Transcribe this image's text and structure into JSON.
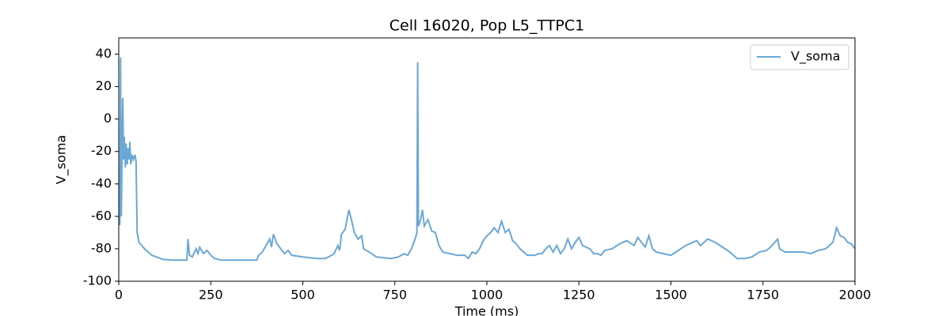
{
  "chart_data": {
    "type": "line",
    "title": "Cell 16020, Pop L5_TTPC1",
    "xlabel": "Time (ms)",
    "ylabel": "V_soma",
    "x": [
      0,
      3,
      5,
      7,
      9,
      11,
      13,
      15,
      18,
      20,
      23,
      25,
      28,
      30,
      33,
      36,
      40,
      44,
      47,
      50,
      55,
      70,
      90,
      120,
      150,
      185,
      188,
      192,
      200,
      210,
      215,
      220,
      230,
      240,
      250,
      260,
      280,
      320,
      375,
      380,
      390,
      400,
      410,
      415,
      420,
      430,
      440,
      450,
      460,
      470,
      500,
      540,
      560,
      570,
      585,
      595,
      600,
      605,
      615,
      625,
      632,
      640,
      650,
      660,
      665,
      680,
      700,
      740,
      760,
      775,
      785,
      795,
      805,
      810,
      812,
      814,
      820,
      825,
      830,
      840,
      850,
      860,
      870,
      880,
      900,
      920,
      940,
      950,
      960,
      970,
      980,
      990,
      1000,
      1010,
      1020,
      1030,
      1040,
      1050,
      1060,
      1070,
      1080,
      1090,
      1100,
      1110,
      1120,
      1130,
      1140,
      1150,
      1160,
      1170,
      1180,
      1190,
      1200,
      1210,
      1220,
      1230,
      1240,
      1250,
      1260,
      1270,
      1280,
      1290,
      1300,
      1310,
      1320,
      1340,
      1360,
      1380,
      1400,
      1410,
      1420,
      1430,
      1440,
      1450,
      1460,
      1480,
      1500,
      1520,
      1540,
      1560,
      1570,
      1580,
      1600,
      1620,
      1640,
      1660,
      1680,
      1700,
      1720,
      1740,
      1760,
      1770,
      1790,
      1795,
      1810,
      1840,
      1860,
      1880,
      1900,
      1920,
      1940,
      1950,
      1960,
      1970,
      1980,
      1990,
      2000
    ],
    "series": [
      {
        "name": "V_soma",
        "color": "#6aa8d6",
        "values": [
          -65,
          -65,
          38,
          -60,
          -20,
          13,
          -25,
          -11,
          -30,
          -15,
          -28,
          -18,
          -25,
          -14,
          -28,
          -22,
          -25,
          -22,
          -26,
          -70,
          -76,
          -80,
          -84,
          -86.5,
          -87,
          -87,
          -74,
          -84,
          -85,
          -80,
          -83,
          -79,
          -83,
          -81,
          -84,
          -86,
          -87,
          -87,
          -87,
          -84,
          -82,
          -78,
          -74,
          -79,
          -71,
          -77,
          -80,
          -83,
          -81,
          -84,
          -85,
          -86,
          -86,
          -85,
          -83,
          -78,
          -81,
          -71,
          -68,
          -56,
          -62,
          -70,
          -74,
          -72,
          -80,
          -82,
          -85,
          -86,
          -85,
          -83,
          -84,
          -80,
          -74,
          -70,
          35,
          -66,
          -62,
          -56,
          -66,
          -62,
          -69,
          -70,
          -78,
          -82,
          -83,
          -84,
          -84,
          -86,
          -82,
          -83,
          -80,
          -75,
          -72,
          -70,
          -67,
          -70,
          -63,
          -70,
          -68,
          -75,
          -77,
          -80,
          -82,
          -84,
          -84,
          -84,
          -83,
          -83,
          -80,
          -78,
          -82,
          -78,
          -83,
          -80,
          -74,
          -80,
          -76,
          -73,
          -78,
          -79,
          -80,
          -83,
          -83,
          -84,
          -81,
          -80,
          -77,
          -75,
          -78,
          -73,
          -76,
          -79,
          -72,
          -80,
          -82,
          -83,
          -84,
          -81,
          -78,
          -76,
          -75,
          -78,
          -74,
          -76,
          -79,
          -82,
          -86,
          -86,
          -85,
          -82,
          -81,
          -79,
          -74,
          -80,
          -82,
          -82,
          -82,
          -83,
          -81,
          -80,
          -76,
          -67,
          -72,
          -73,
          -76,
          -77,
          -80
        ]
      }
    ],
    "xlim": [
      0,
      2000
    ],
    "xticks": [
      0,
      250,
      500,
      750,
      1000,
      1250,
      1500,
      1750,
      2000
    ],
    "ylim": [
      -100,
      50
    ],
    "yticks": [
      -100,
      -80,
      -60,
      -40,
      -20,
      0,
      20,
      40
    ],
    "grid": false,
    "legend": "upper right"
  }
}
